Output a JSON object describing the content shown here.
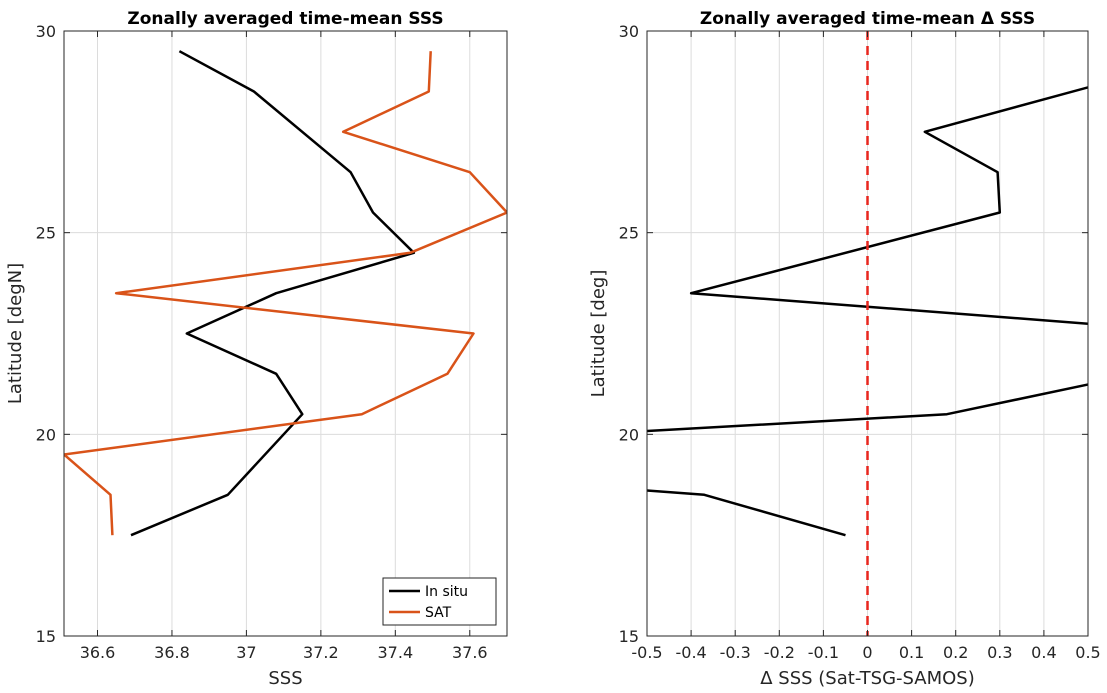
{
  "chart_data": [
    {
      "type": "line",
      "title": "Zonally averaged time-mean SSS",
      "xlabel": "SSS",
      "ylabel": "Latitude [degN]",
      "xlim": [
        36.51,
        37.7
      ],
      "ylim": [
        15,
        30
      ],
      "xticks": [
        36.6,
        36.8,
        37.0,
        37.2,
        37.4,
        37.6
      ],
      "xtick_labels": [
        "36.6",
        "36.8",
        "37",
        "37.2",
        "37.4",
        "37.6"
      ],
      "yticks": [
        15,
        20,
        25,
        30
      ],
      "ytick_labels": [
        "15",
        "20",
        "25",
        "30"
      ],
      "grid": true,
      "legend": "bottom-right",
      "series": [
        {
          "name": "In situ",
          "color": "#000000",
          "x": [
            36.69,
            36.95,
            37.15,
            37.08,
            36.84,
            37.08,
            37.45,
            37.34,
            37.28,
            37.02,
            36.82
          ],
          "y": [
            17.5,
            18.5,
            20.5,
            21.5,
            22.5,
            23.5,
            24.5,
            25.5,
            26.5,
            28.5,
            29.5
          ]
        },
        {
          "name": "SAT",
          "color": "#D95319",
          "x": [
            36.64,
            36.635,
            36.51,
            37.31,
            37.54,
            37.61,
            36.65,
            37.44,
            37.7,
            37.6,
            37.26,
            37.49,
            37.495
          ],
          "y": [
            17.5,
            18.5,
            19.5,
            20.5,
            21.5,
            22.5,
            23.5,
            24.5,
            25.5,
            26.5,
            27.5,
            28.5,
            29.5
          ]
        }
      ]
    },
    {
      "type": "line",
      "title": "Zonally averaged time-mean Δ SSS",
      "xlabel": "Δ SSS (Sat-TSG-SAMOS)",
      "ylabel": "Latitude [deg]",
      "xlim": [
        -0.5,
        0.5
      ],
      "ylim": [
        15,
        30
      ],
      "xticks": [
        -0.5,
        -0.4,
        -0.3,
        -0.2,
        -0.1,
        0,
        0.1,
        0.2,
        0.3,
        0.4,
        0.5
      ],
      "xtick_labels": [
        "-0.5",
        "-0.4",
        "-0.3",
        "-0.2",
        "-0.1",
        "0",
        "0.1",
        "0.2",
        "0.3",
        "0.4",
        "0.5"
      ],
      "yticks": [
        15,
        20,
        25,
        30
      ],
      "ytick_labels": [
        "15",
        "20",
        "25",
        "30"
      ],
      "grid": true,
      "reference_line": {
        "x": 0,
        "color": "#e8261e",
        "style": "dashed"
      },
      "series": [
        {
          "color": "#000000",
          "x": [
            -0.05,
            -0.37,
            -0.55,
            null,
            -0.55,
            0.18,
            0.55,
            null,
            0.55,
            -0.4,
            0.3,
            0.295,
            0.13,
            0.55
          ],
          "y": [
            17.5,
            18.5,
            18.65,
            null,
            20.05,
            20.5,
            21.35,
            null,
            22.7,
            23.5,
            25.5,
            26.5,
            27.5,
            28.75
          ]
        }
      ]
    }
  ]
}
